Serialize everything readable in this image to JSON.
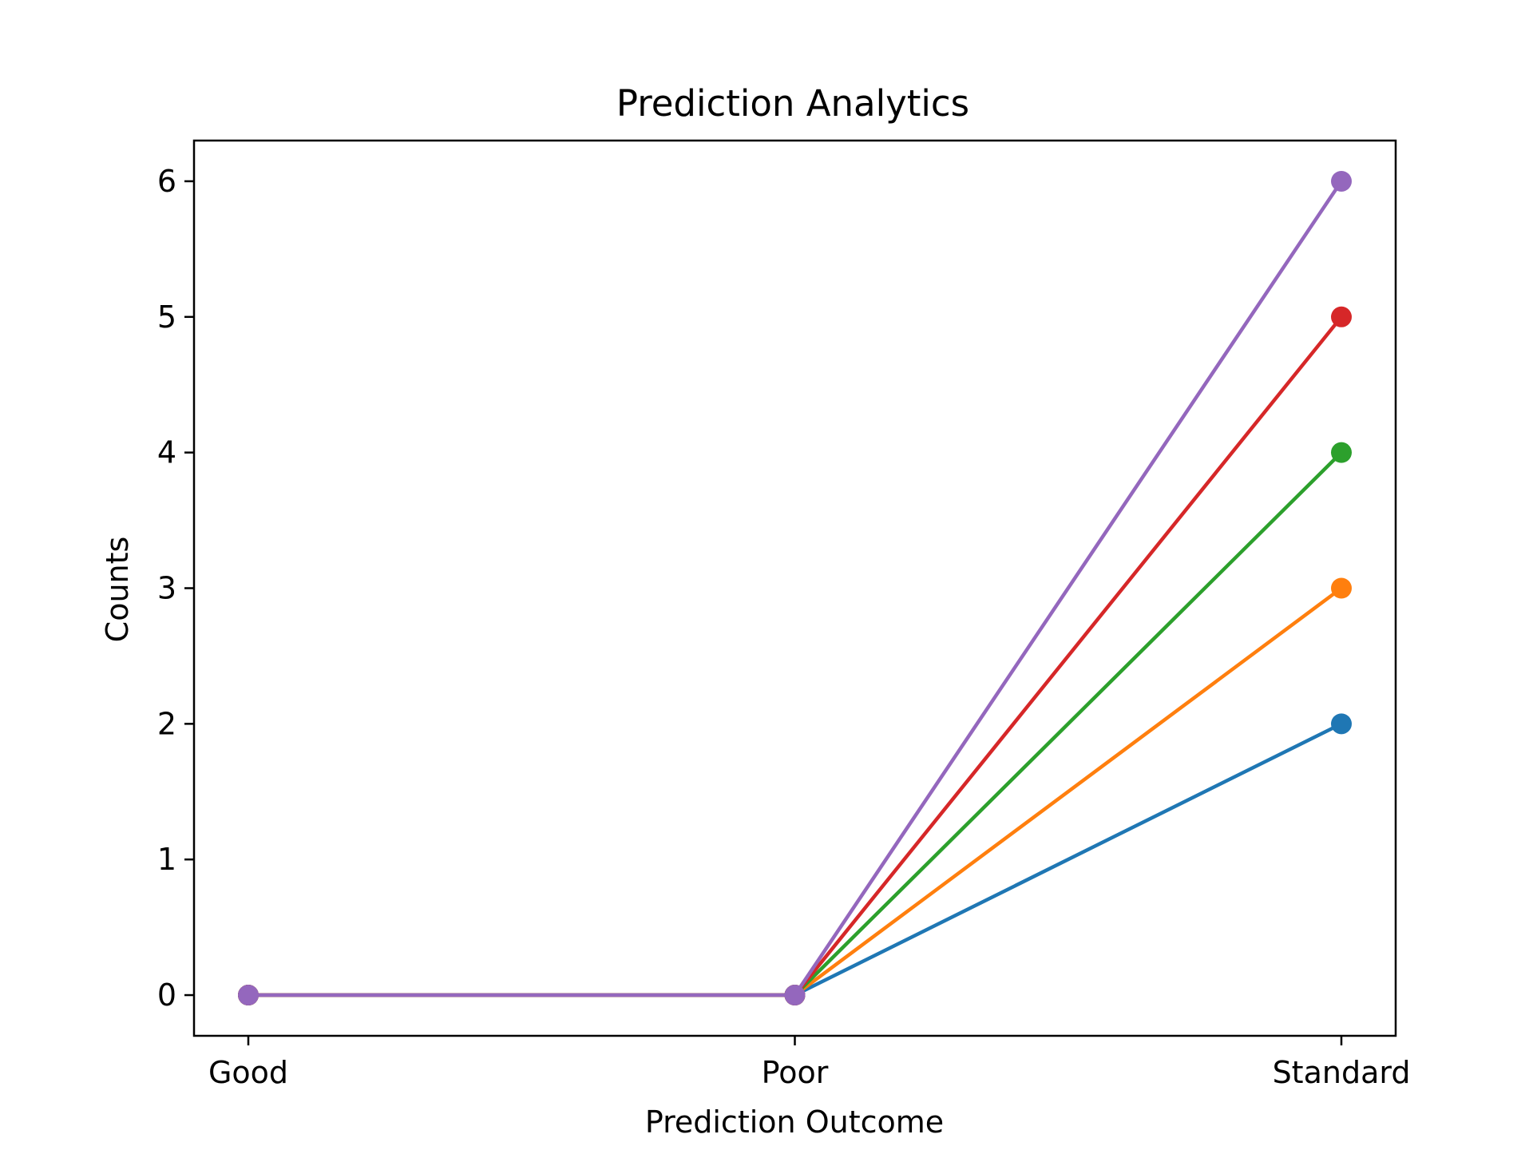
{
  "chart_data": {
    "type": "line",
    "title": "Prediction Analytics",
    "xlabel": "Prediction Outcome",
    "ylabel": "Counts",
    "categories": [
      "Good",
      "Poor",
      "Standard"
    ],
    "yticks": [
      0,
      1,
      2,
      3,
      4,
      5,
      6
    ],
    "ylim": [
      -0.3,
      6.3
    ],
    "grid": false,
    "legend": "none",
    "markers": "circle",
    "series": [
      {
        "values": [
          0,
          0,
          2
        ],
        "color": "#1f77b4"
      },
      {
        "values": [
          0,
          0,
          3
        ],
        "color": "#ff7f0e"
      },
      {
        "values": [
          0,
          0,
          4
        ],
        "color": "#2ca02c"
      },
      {
        "values": [
          0,
          0,
          5
        ],
        "color": "#d62728"
      },
      {
        "values": [
          0,
          0,
          6
        ],
        "color": "#9467bd"
      }
    ]
  }
}
